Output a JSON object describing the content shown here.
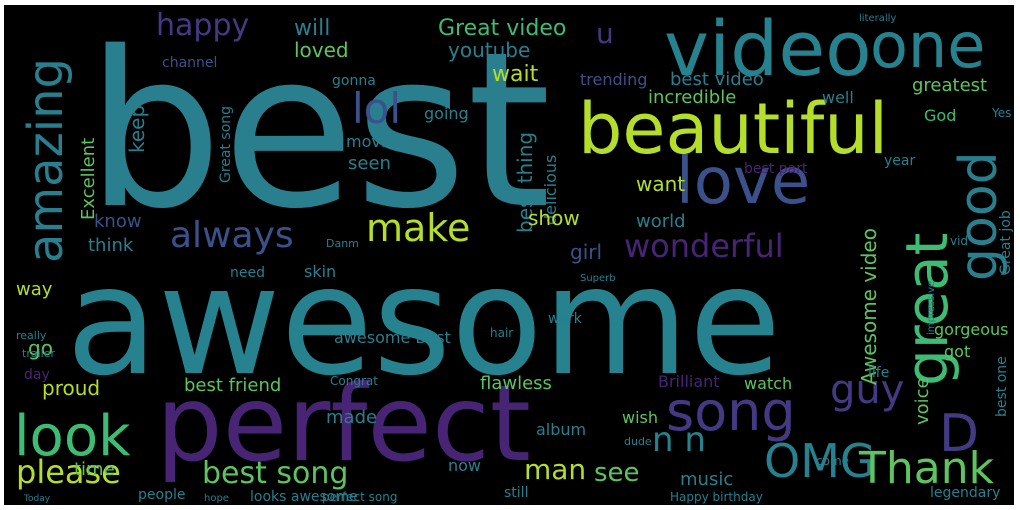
{
  "palette": {
    "teal": "#2a7f8e",
    "teal_light": "#2fb08a",
    "green": "#5ec45f",
    "yellow_green": "#b5de2b",
    "blue": "#3b518b",
    "purple": "#482475",
    "violet": "#443a83",
    "cyan": "#26828e",
    "mint": "#3dbc74"
  },
  "words": [
    {
      "text": "best",
      "color": "teal"
    },
    {
      "text": "awesome",
      "color": "cyan"
    },
    {
      "text": "perfect",
      "color": "purple"
    },
    {
      "text": "video",
      "color": "cyan"
    },
    {
      "text": "beautiful",
      "color": "yellow_green"
    },
    {
      "text": "one",
      "color": "cyan"
    },
    {
      "text": "love",
      "color": "blue"
    },
    {
      "text": "great",
      "color": "mint"
    },
    {
      "text": "good",
      "color": "teal"
    },
    {
      "text": "amazing",
      "color": "teal"
    },
    {
      "text": "look",
      "color": "mint"
    },
    {
      "text": "song",
      "color": "violet"
    },
    {
      "text": "OMG",
      "color": "cyan"
    },
    {
      "text": "Thank",
      "color": "green"
    },
    {
      "text": "D",
      "color": "violet"
    },
    {
      "text": "lol",
      "color": "blue"
    },
    {
      "text": "happy",
      "color": "violet"
    },
    {
      "text": "make",
      "color": "yellow_green"
    },
    {
      "text": "always",
      "color": "blue"
    },
    {
      "text": "wonderful",
      "color": "purple"
    },
    {
      "text": "guy",
      "color": "violet"
    },
    {
      "text": "please",
      "color": "yellow_green"
    },
    {
      "text": "best song",
      "color": "green"
    },
    {
      "text": "n n",
      "color": "cyan"
    },
    {
      "text": "u",
      "color": "violet"
    },
    {
      "text": "Great video",
      "color": "mint"
    },
    {
      "text": "youtube",
      "color": "teal"
    },
    {
      "text": "will",
      "color": "teal"
    },
    {
      "text": "loved",
      "color": "green"
    },
    {
      "text": "wait",
      "color": "yellow_green"
    },
    {
      "text": "channel",
      "color": "blue"
    },
    {
      "text": "gonna",
      "color": "teal"
    },
    {
      "text": "trending",
      "color": "blue"
    },
    {
      "text": "best video",
      "color": "teal"
    },
    {
      "text": "greatest",
      "color": "green"
    },
    {
      "text": "well",
      "color": "teal"
    },
    {
      "text": "incredible",
      "color": "green"
    },
    {
      "text": "God",
      "color": "mint"
    },
    {
      "text": "keep",
      "color": "teal"
    },
    {
      "text": "Excellent",
      "color": "green"
    },
    {
      "text": "Great song",
      "color": "teal"
    },
    {
      "text": "movie",
      "color": "teal"
    },
    {
      "text": "seen",
      "color": "teal"
    },
    {
      "text": "going",
      "color": "teal"
    },
    {
      "text": "best thing",
      "color": "teal"
    },
    {
      "text": "delicious",
      "color": "teal"
    },
    {
      "text": "best part",
      "color": "purple"
    },
    {
      "text": "year",
      "color": "teal"
    },
    {
      "text": "Great job",
      "color": "teal"
    },
    {
      "text": "want",
      "color": "yellow_green"
    },
    {
      "text": "world",
      "color": "teal"
    },
    {
      "text": "show",
      "color": "yellow_green"
    },
    {
      "text": "girl",
      "color": "blue"
    },
    {
      "text": "know",
      "color": "blue"
    },
    {
      "text": "think",
      "color": "teal"
    },
    {
      "text": "skin",
      "color": "teal"
    },
    {
      "text": "need",
      "color": "teal"
    },
    {
      "text": "way",
      "color": "yellow_green"
    },
    {
      "text": "go",
      "color": "green"
    },
    {
      "text": "day",
      "color": "purple"
    },
    {
      "text": "Awesome video",
      "color": "green"
    },
    {
      "text": "gorgeous",
      "color": "green"
    },
    {
      "text": "got",
      "color": "green"
    },
    {
      "text": "life",
      "color": "teal"
    },
    {
      "text": "voice",
      "color": "green"
    },
    {
      "text": "best one",
      "color": "teal"
    },
    {
      "text": "work",
      "color": "teal"
    },
    {
      "text": "awesome Best",
      "color": "teal"
    },
    {
      "text": "Brilliant",
      "color": "purple"
    },
    {
      "text": "watch",
      "color": "green"
    },
    {
      "text": "proud",
      "color": "yellow_green"
    },
    {
      "text": "best friend",
      "color": "green"
    },
    {
      "text": "flawless",
      "color": "green"
    },
    {
      "text": "made",
      "color": "teal"
    },
    {
      "text": "album",
      "color": "teal"
    },
    {
      "text": "wish",
      "color": "green"
    },
    {
      "text": "man",
      "color": "yellow_green"
    },
    {
      "text": "see",
      "color": "green"
    },
    {
      "text": "music",
      "color": "teal"
    },
    {
      "text": "time",
      "color": "green"
    },
    {
      "text": "now",
      "color": "teal"
    },
    {
      "text": "still",
      "color": "teal"
    },
    {
      "text": "Happy birthday",
      "color": "teal"
    },
    {
      "text": "people",
      "color": "teal"
    },
    {
      "text": "legendary",
      "color": "teal"
    },
    {
      "text": "looks awesome",
      "color": "teal"
    },
    {
      "text": "perfect song",
      "color": "teal"
    },
    {
      "text": "Danm",
      "color": "teal"
    },
    {
      "text": "hair",
      "color": "teal"
    },
    {
      "text": "Congrat",
      "color": "teal"
    },
    {
      "text": "vid",
      "color": "teal"
    },
    {
      "text": "Superb",
      "color": "teal"
    },
    {
      "text": "come",
      "color": "teal"
    },
    {
      "text": "really",
      "color": "teal"
    },
    {
      "text": "trailer",
      "color": "teal"
    },
    {
      "text": "Today",
      "color": "teal"
    },
    {
      "text": "hope",
      "color": "teal"
    },
    {
      "text": "dude",
      "color": "teal"
    },
    {
      "text": "Yes",
      "color": "teal"
    },
    {
      "text": "impressive",
      "color": "teal"
    },
    {
      "text": "literally",
      "color": "teal"
    }
  ]
}
